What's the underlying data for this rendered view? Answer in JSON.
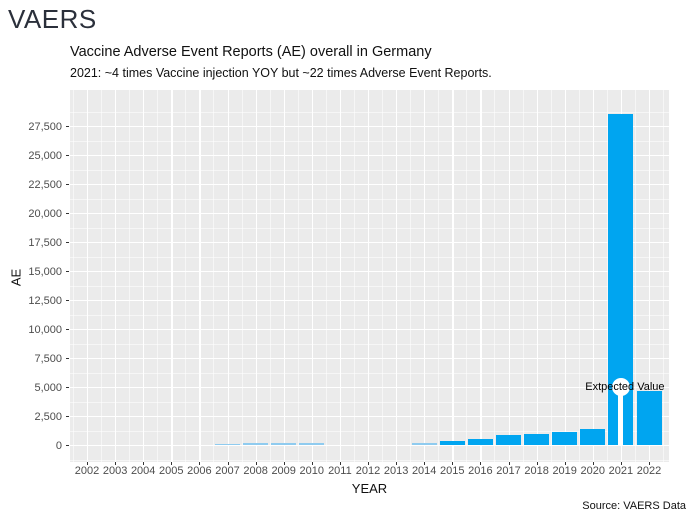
{
  "header": {
    "brand": "VAERS"
  },
  "chart": {
    "title": "Vaccine Adverse Event Reports (AE) overall in Germany",
    "subtitle": "2021: ~4 times Vaccine injection YOY but ~22 times Adverse Event Reports.",
    "caption": "Source: VAERS Data",
    "x_axis_label": "YEAR",
    "y_axis_label": "AE",
    "annotation": {
      "label": "Extpected Value",
      "year": "2021",
      "value": 5000
    }
  },
  "chart_data": {
    "type": "bar",
    "title": "Vaccine Adverse Event Reports (AE) overall in Germany",
    "subtitle": "2021: ~4 times Vaccine injection YOY but ~22 times Adverse Event Reports.",
    "caption": "Source: VAERS Data",
    "xlabel": "YEAR",
    "ylabel": "AE",
    "categories": [
      "2002",
      "2003",
      "2004",
      "2005",
      "2006",
      "2007",
      "2008",
      "2009",
      "2010",
      "2011",
      "2012",
      "2013",
      "2014",
      "2015",
      "2016",
      "2017",
      "2018",
      "2019",
      "2020",
      "2021",
      "2022"
    ],
    "values": [
      0,
      0,
      0,
      0,
      0,
      100,
      150,
      150,
      150,
      0,
      0,
      0,
      200,
      350,
      550,
      850,
      950,
      1100,
      1350,
      28500,
      4700
    ],
    "ylim": [
      0,
      29500
    ],
    "yticks": [
      0,
      2500,
      5000,
      7500,
      10000,
      12500,
      15000,
      17500,
      20000,
      22500,
      25000,
      27500
    ],
    "ytick_labels": [
      "0",
      "2,500",
      "5,000",
      "7,500",
      "10,000",
      "12,500",
      "15,000",
      "17,500",
      "20,000",
      "22,500",
      "25,000",
      "27,500"
    ],
    "grid": "white major and minor gridlines on gray panel",
    "legend": "none",
    "annotation": {
      "label": "Extpected Value",
      "year": "2021",
      "value": 5000
    },
    "colors": {
      "bar": "#00A5F0",
      "bar_thin": "#8FCBEF",
      "panel_bg": "#EBEBEB",
      "tick_text": "#4d4d4d",
      "brand_text": "#2b303b"
    }
  }
}
